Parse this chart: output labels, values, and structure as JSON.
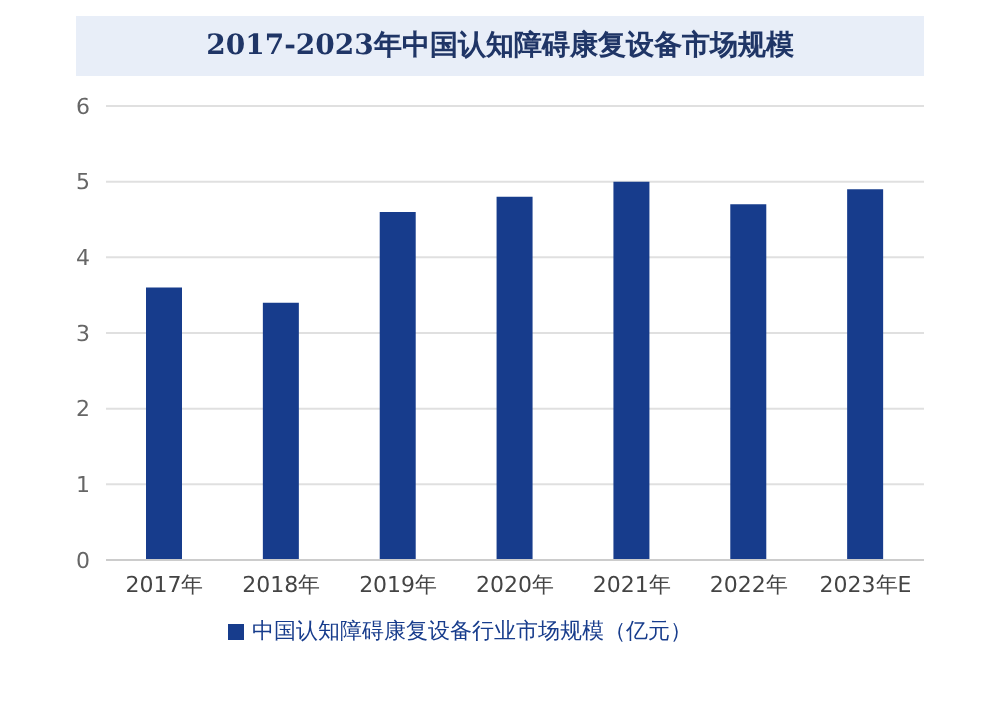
{
  "chart_data": {
    "type": "bar",
    "title": "2017-2023年中国认知障碍康复设备市场规模",
    "categories": [
      "2017年",
      "2018年",
      "2019年",
      "2020年",
      "2021年",
      "2022年",
      "2023年E"
    ],
    "series": [
      {
        "name": "中国认知障碍康复设备行业市场规模（亿元）",
        "color": "#173c8c",
        "values": [
          3.6,
          3.4,
          4.6,
          4.8,
          5.0,
          4.7,
          4.9
        ]
      }
    ],
    "ylim": [
      0,
      6
    ],
    "yticks": [
      0,
      1,
      2,
      3,
      4,
      5,
      6
    ],
    "grid": "y",
    "legend": "bottom"
  }
}
